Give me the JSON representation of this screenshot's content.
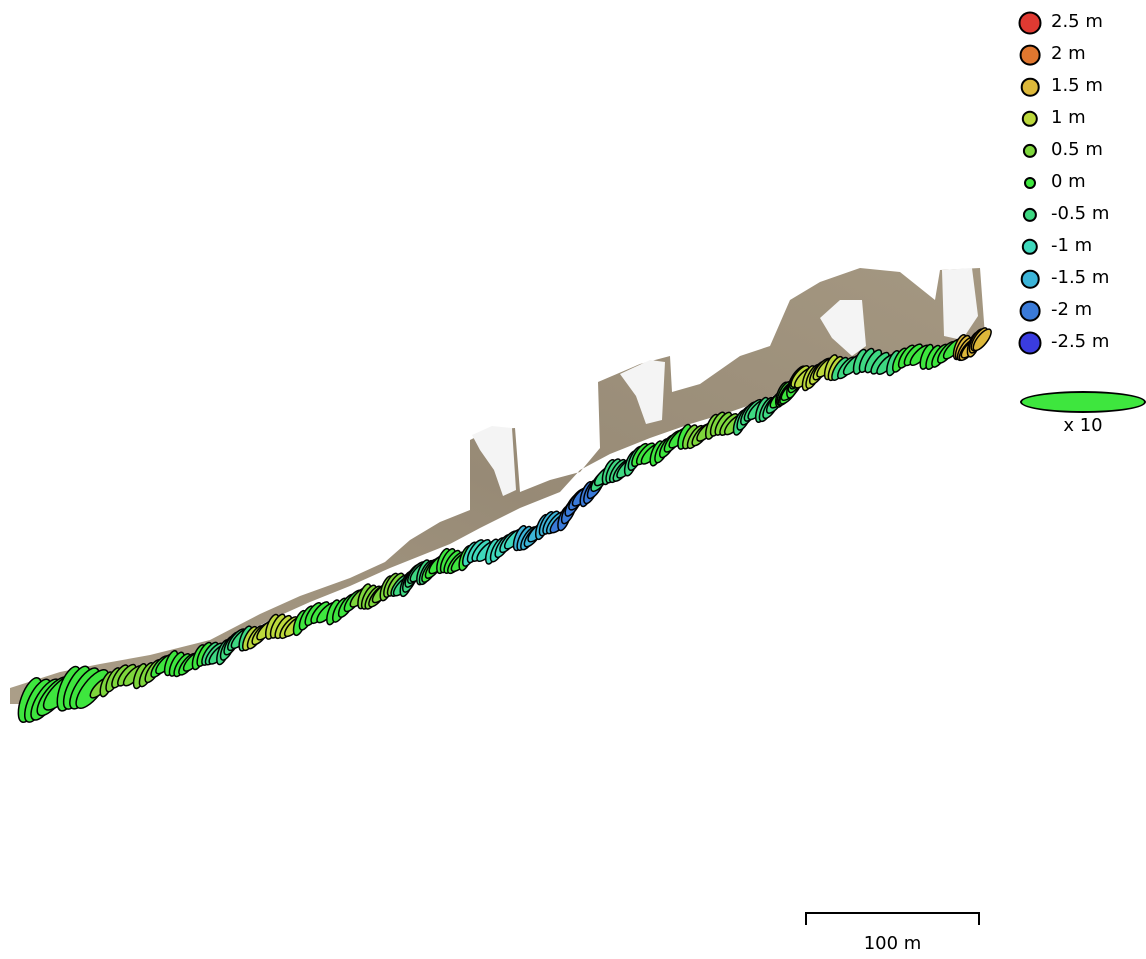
{
  "legend": {
    "entries": [
      {
        "label": "2.5 m",
        "value": 2.5,
        "color": "#e03a32"
      },
      {
        "label": "2 m",
        "value": 2.0,
        "color": "#e0772f"
      },
      {
        "label": "1.5 m",
        "value": 1.5,
        "color": "#ddb83a"
      },
      {
        "label": "1 m",
        "value": 1.0,
        "color": "#bcd83c"
      },
      {
        "label": "0.5 m",
        "value": 0.5,
        "color": "#7ed63c"
      },
      {
        "label": "0 m",
        "value": 0.0,
        "color": "#3ee63e"
      },
      {
        "label": "-0.5 m",
        "value": -0.5,
        "color": "#3ed882"
      },
      {
        "label": "-1 m",
        "value": -1.0,
        "color": "#3ed8bc"
      },
      {
        "label": "-1.5 m",
        "value": -1.5,
        "color": "#3cb4d8"
      },
      {
        "label": "-2 m",
        "value": -2.0,
        "color": "#3a7ad8"
      },
      {
        "label": "-2.5 m",
        "value": -2.5,
        "color": "#3a3ce0"
      }
    ]
  },
  "ellipse_scale": {
    "label": "x 10",
    "color": "#3ee63e"
  },
  "scalebar": {
    "label": "100 m"
  },
  "colors": {
    "terrain": "#9a8c74",
    "snow": "#f4f4f4",
    "outline": "#000000"
  }
}
